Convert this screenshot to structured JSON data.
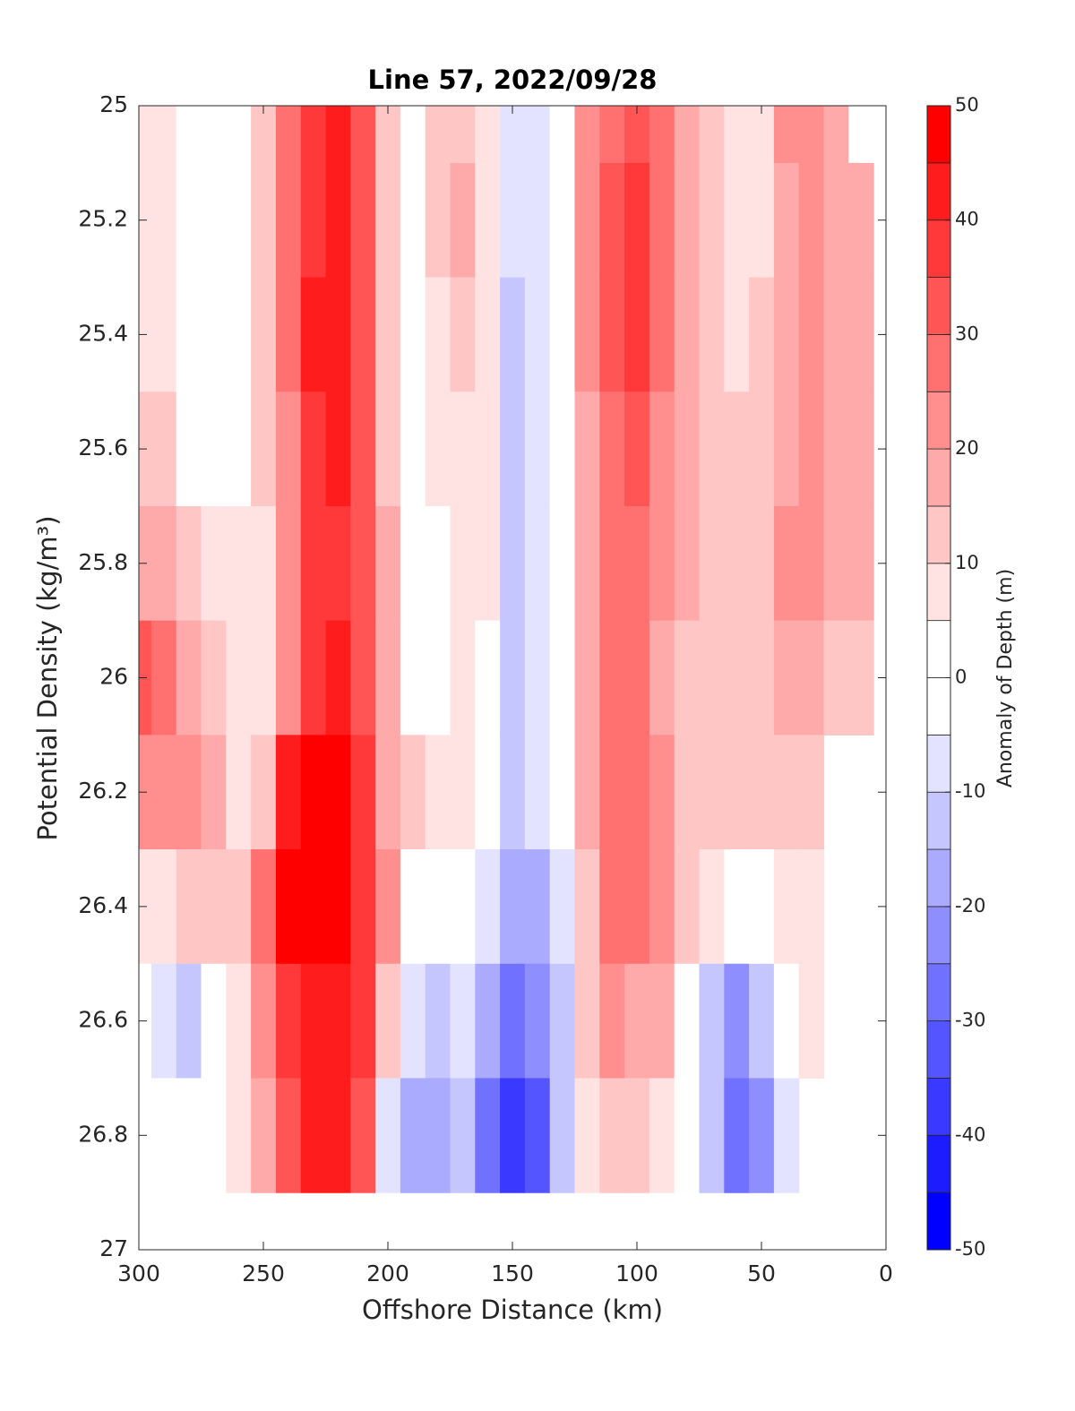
{
  "chart_data": {
    "type": "contour",
    "title": "Line 57, 2022/09/28",
    "xlabel": "Offshore Distance (km)",
    "ylabel": "Potential Density (kg/m³)",
    "colorbar_label": "Anomaly of Depth (m)",
    "xlim": [
      300,
      0
    ],
    "ylim": [
      25,
      27
    ],
    "xticks": [
      300,
      250,
      200,
      150,
      100,
      50,
      0
    ],
    "yticks": [
      25,
      25.2,
      25.4,
      25.6,
      25.8,
      26,
      26.2,
      26.4,
      26.6,
      26.8,
      27
    ],
    "clim": [
      -50,
      50
    ],
    "cticks": [
      -50,
      -40,
      -30,
      -20,
      -10,
      0,
      10,
      20,
      30,
      40,
      50
    ],
    "levels": [
      -50,
      -45,
      -40,
      -35,
      -30,
      -25,
      -20,
      -15,
      -10,
      -5,
      0,
      5,
      10,
      15,
      20,
      25,
      30,
      35,
      40,
      45,
      50
    ],
    "colors": {
      "low": "#0000ff",
      "mid": "#ffffff",
      "high": "#ff0000"
    },
    "x": [
      300,
      290,
      280,
      270,
      260,
      250,
      240,
      230,
      220,
      210,
      200,
      190,
      180,
      170,
      160,
      150,
      140,
      130,
      120,
      110,
      100,
      90,
      80,
      70,
      60,
      50,
      40,
      30,
      20,
      10
    ],
    "y": [
      25,
      25.2,
      25.4,
      25.6,
      25.8,
      26,
      26.2,
      26.4,
      26.6,
      26.8
    ],
    "z": [
      [
        8,
        8,
        8,
        12,
        18,
        30,
        20,
        8,
        -2,
        2
      ],
      [
        6,
        7,
        8,
        10,
        15,
        25,
        22,
        8,
        -10,
        -3
      ],
      [
        2,
        2,
        2,
        4,
        10,
        18,
        20,
        10,
        -12,
        -2
      ],
      [
        0,
        0,
        0,
        2,
        6,
        12,
        18,
        10,
        -5,
        2
      ],
      [
        2,
        2,
        3,
        4,
        5,
        6,
        8,
        10,
        5,
        8
      ],
      [
        12,
        12,
        12,
        10,
        8,
        8,
        12,
        25,
        20,
        18
      ],
      [
        25,
        25,
        25,
        22,
        20,
        22,
        40,
        48,
        35,
        30
      ],
      [
        35,
        38,
        40,
        38,
        35,
        38,
        46,
        48,
        42,
        42
      ],
      [
        42,
        43,
        42,
        40,
        38,
        40,
        45,
        48,
        42,
        42
      ],
      [
        30,
        30,
        30,
        30,
        30,
        32,
        35,
        38,
        35,
        30
      ],
      [
        12,
        12,
        12,
        12,
        15,
        15,
        18,
        22,
        10,
        -8
      ],
      [
        4,
        3,
        2,
        2,
        4,
        4,
        10,
        2,
        -10,
        -20
      ],
      [
        10,
        12,
        8,
        8,
        2,
        3,
        5,
        -3,
        -12,
        -18
      ],
      [
        14,
        15,
        12,
        8,
        8,
        8,
        7,
        0,
        -8,
        -12
      ],
      [
        5,
        5,
        6,
        6,
        6,
        4,
        2,
        -8,
        -20,
        -30
      ],
      [
        -8,
        -10,
        -12,
        -12,
        -12,
        -14,
        -12,
        -20,
        -30,
        -38
      ],
      [
        -6,
        -8,
        -10,
        -10,
        -10,
        -10,
        -10,
        -18,
        -25,
        -32
      ],
      [
        -2,
        -2,
        -3,
        -3,
        -3,
        -3,
        -5,
        -10,
        -15,
        -15
      ],
      [
        20,
        20,
        20,
        18,
        15,
        15,
        15,
        12,
        10,
        8
      ],
      [
        28,
        30,
        30,
        28,
        25,
        25,
        28,
        26,
        20,
        12
      ],
      [
        30,
        35,
        35,
        30,
        28,
        25,
        28,
        25,
        18,
        10
      ],
      [
        25,
        25,
        25,
        22,
        20,
        18,
        20,
        20,
        15,
        5
      ],
      [
        18,
        18,
        18,
        15,
        15,
        14,
        14,
        10,
        0,
        -5
      ],
      [
        12,
        12,
        14,
        14,
        14,
        14,
        12,
        6,
        -12,
        -15
      ],
      [
        6,
        6,
        8,
        12,
        14,
        12,
        10,
        -4,
        -22,
        -30
      ],
      [
        6,
        8,
        10,
        12,
        14,
        12,
        12,
        2,
        -15,
        -25
      ],
      [
        20,
        18,
        18,
        18,
        20,
        15,
        12,
        6,
        -4,
        -10
      ],
      [
        22,
        22,
        22,
        22,
        20,
        18,
        12,
        8,
        8,
        null
      ],
      [
        18,
        18,
        18,
        18,
        15,
        12,
        null,
        null,
        null,
        null
      ],
      [
        3,
        15,
        15,
        15,
        15,
        10,
        null,
        null,
        null,
        null
      ]
    ]
  }
}
